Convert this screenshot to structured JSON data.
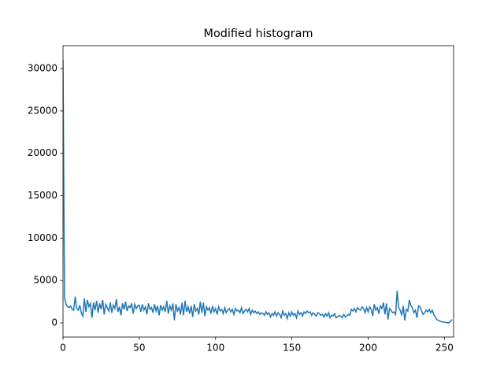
{
  "chart_data": {
    "type": "line",
    "title": "Modified histogram",
    "x": [
      0,
      1,
      2,
      3,
      4,
      5,
      6,
      7,
      8,
      9,
      10,
      11,
      12,
      13,
      14,
      15,
      16,
      17,
      18,
      19,
      20,
      21,
      22,
      23,
      24,
      25,
      26,
      27,
      28,
      29,
      30,
      31,
      32,
      33,
      34,
      35,
      36,
      37,
      38,
      39,
      40,
      41,
      42,
      43,
      44,
      45,
      46,
      47,
      48,
      49,
      50,
      51,
      52,
      53,
      54,
      55,
      56,
      57,
      58,
      59,
      60,
      61,
      62,
      63,
      64,
      65,
      66,
      67,
      68,
      69,
      70,
      71,
      72,
      73,
      74,
      75,
      76,
      77,
      78,
      79,
      80,
      81,
      82,
      83,
      84,
      85,
      86,
      87,
      88,
      89,
      90,
      91,
      92,
      93,
      94,
      95,
      96,
      97,
      98,
      99,
      100,
      101,
      102,
      103,
      104,
      105,
      106,
      107,
      108,
      109,
      110,
      111,
      112,
      113,
      114,
      115,
      116,
      117,
      118,
      119,
      120,
      121,
      122,
      123,
      124,
      125,
      126,
      127,
      128,
      129,
      130,
      131,
      132,
      133,
      134,
      135,
      136,
      137,
      138,
      139,
      140,
      141,
      142,
      143,
      144,
      145,
      146,
      147,
      148,
      149,
      150,
      151,
      152,
      153,
      154,
      155,
      156,
      157,
      158,
      159,
      160,
      161,
      162,
      163,
      164,
      165,
      166,
      167,
      168,
      169,
      170,
      171,
      172,
      173,
      174,
      175,
      176,
      177,
      178,
      179,
      180,
      181,
      182,
      183,
      184,
      185,
      186,
      187,
      188,
      189,
      190,
      191,
      192,
      193,
      194,
      195,
      196,
      197,
      198,
      199,
      200,
      201,
      202,
      203,
      204,
      205,
      206,
      207,
      208,
      209,
      210,
      211,
      212,
      213,
      214,
      215,
      216,
      217,
      218,
      219,
      220,
      221,
      222,
      223,
      224,
      225,
      226,
      227,
      228,
      229,
      230,
      231,
      232,
      233,
      234,
      235,
      236,
      237,
      238,
      239,
      240,
      241,
      242,
      243,
      244,
      245,
      246,
      247,
      248,
      249,
      250,
      251,
      252,
      253,
      254,
      255
    ],
    "series": [
      {
        "color": "#1f77b4",
        "values": [
          31000,
          3000,
          2200,
          1900,
          1800,
          2000,
          1600,
          1500,
          3100,
          1700,
          1500,
          2100,
          1200,
          800,
          2900,
          1300,
          2700,
          1900,
          2300,
          600,
          2400,
          1500,
          2600,
          1200,
          2300,
          1600,
          2700,
          1000,
          2200,
          1800,
          1400,
          2400,
          1200,
          2100,
          1700,
          2800,
          1300,
          1900,
          900,
          2300,
          1600,
          2500,
          1400,
          2000,
          1800,
          2300,
          1100,
          2200,
          1700,
          2000,
          2100,
          1300,
          2200,
          1500,
          1900,
          1000,
          2300,
          1600,
          1800,
          1200,
          2200,
          1400,
          2000,
          900,
          2100,
          1500,
          1900,
          1300,
          2600,
          1100,
          2000,
          1500,
          2300,
          300,
          2200,
          1400,
          1800,
          1000,
          2400,
          900,
          2600,
          1300,
          1900,
          1100,
          2000,
          700,
          2200,
          1400,
          1700,
          1000,
          2500,
          1200,
          2400,
          800,
          1900,
          1500,
          1800,
          1100,
          2000,
          1300,
          1700,
          1000,
          1900,
          1400,
          1600,
          1100,
          1800,
          1200,
          1500,
          1700,
          1300,
          1600,
          1000,
          1700,
          1400,
          1500,
          1200,
          1800,
          1100,
          1400,
          1600,
          1300,
          1700,
          1000,
          1500,
          1200,
          1400,
          1100,
          1300,
          1000,
          1200,
          1100,
          900,
          1300,
          1000,
          1200,
          700,
          1100,
          900,
          1300,
          800,
          1200,
          1000,
          600,
          1400,
          900,
          1100,
          500,
          1200,
          800,
          1300,
          900,
          1100,
          600,
          1400,
          1000,
          1200,
          800,
          1300,
          1100,
          1400,
          1200,
          1300,
          900,
          1200,
          1000,
          800,
          1200,
          1100,
          900,
          1000,
          700,
          1100,
          800,
          1200,
          600,
          900,
          800,
          1100,
          600,
          700,
          900,
          800,
          600,
          1000,
          700,
          800,
          1000,
          900,
          1600,
          1400,
          1700,
          1300,
          1800,
          1600,
          1500,
          1900,
          1700,
          1200,
          1800,
          1300,
          1900,
          1600,
          800,
          2200,
          1500,
          1800,
          1100,
          2000,
          1700,
          2400,
          1000,
          2300,
          400,
          1700,
          1500,
          1200,
          1300,
          1000,
          3800,
          1800,
          1500,
          900,
          2000,
          300,
          1600,
          1400,
          2700,
          2000,
          1800,
          1200,
          1500,
          600,
          2000,
          1900,
          1400,
          1000,
          1200,
          1500,
          1300,
          1600,
          1200,
          1500,
          1000,
          700,
          400,
          300,
          200,
          150,
          100,
          80,
          50,
          30,
          20,
          200,
          400
        ]
      }
    ],
    "xlim": [
      0,
      256
    ],
    "xticks": [
      0,
      50,
      100,
      150,
      200,
      250
    ],
    "ylim": [
      -1670,
      32700
    ],
    "yticks": [
      0,
      5000,
      10000,
      15000,
      20000,
      25000,
      30000
    ]
  }
}
